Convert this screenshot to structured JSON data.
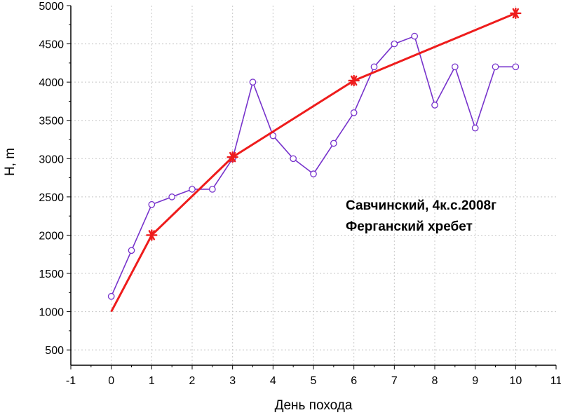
{
  "chart_data": {
    "type": "line",
    "xlabel": "День похода",
    "ylabel": "H, m",
    "xlim": [
      -1,
      11
    ],
    "ylim": [
      300,
      5000
    ],
    "x_ticks": [
      -1,
      0,
      1,
      2,
      3,
      4,
      5,
      6,
      7,
      8,
      9,
      10,
      11
    ],
    "y_ticks": [
      500,
      1000,
      1500,
      2000,
      2500,
      3000,
      3500,
      4000,
      4500,
      5000
    ],
    "grid": true,
    "annotations": [
      "Савчинский, 4к.с.2008г",
      "Ферганский хребет"
    ],
    "series": [
      {
        "marker": "circle",
        "color": "#7733cc",
        "x": [
          0,
          0.5,
          1,
          1.5,
          2,
          2.5,
          3,
          3.5,
          4,
          4.5,
          5,
          5.5,
          6,
          6.5,
          7,
          7.5,
          8,
          8.5,
          9,
          9.5,
          10
        ],
        "y": [
          1200,
          1800,
          2400,
          2500,
          2600,
          2600,
          3000,
          4000,
          3300,
          3000,
          2800,
          3200,
          3600,
          4200,
          4500,
          4600,
          3700,
          4200,
          3400,
          4200,
          4200
        ]
      },
      {
        "marker": "star",
        "color": "#ee1c1c",
        "x": [
          0,
          1,
          3,
          6,
          10
        ],
        "y": [
          1000,
          2000,
          3020,
          4020,
          4900
        ],
        "marked": [
          false,
          true,
          true,
          true,
          true
        ]
      }
    ]
  }
}
